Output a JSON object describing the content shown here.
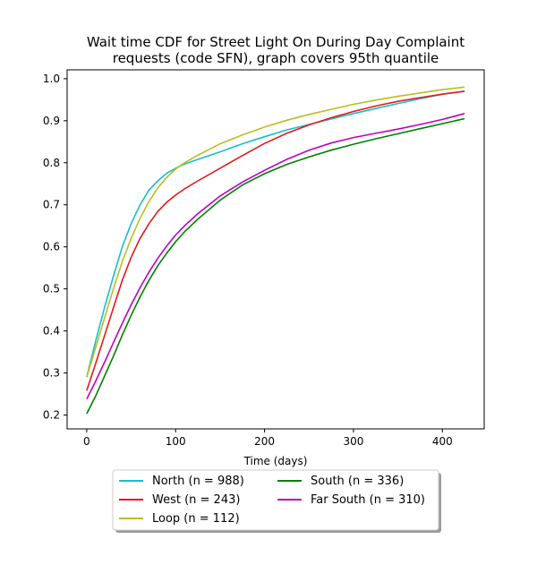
{
  "chart_data": {
    "type": "line",
    "title": "Wait time CDF for Street Light On During Day Complaint requests (code SFN), graph covers 95th quantile",
    "title_lines": [
      "Wait time CDF for Street Light On During Day Complaint",
      "requests (code SFN), graph covers 95th quantile"
    ],
    "xlabel": "Time (days)",
    "ylabel": "",
    "xlim": [
      -22,
      447
    ],
    "ylim": [
      0.167,
      1.021
    ],
    "xticks": [
      0,
      100,
      200,
      300,
      400
    ],
    "xtick_labels": [
      "0",
      "100",
      "200",
      "300",
      "400"
    ],
    "yticks": [
      0.2,
      0.3,
      0.4,
      0.5,
      0.6,
      0.7,
      0.8,
      0.9,
      1.0
    ],
    "ytick_labels": [
      "0.2",
      "0.3",
      "0.4",
      "0.5",
      "0.6",
      "0.7",
      "0.8",
      "0.9",
      "1.0"
    ],
    "grid": false,
    "legend_position": "bottom-center, below plot, two columns",
    "series": [
      {
        "name": "North (n = 988)",
        "color": "#17becf",
        "x": [
          0,
          10,
          20,
          30,
          40,
          50,
          60,
          70,
          80,
          90,
          100,
          110,
          125,
          150,
          175,
          200,
          225,
          250,
          275,
          300,
          325,
          350,
          375,
          400,
          425
        ],
        "y": [
          0.29,
          0.375,
          0.455,
          0.53,
          0.6,
          0.655,
          0.7,
          0.735,
          0.757,
          0.775,
          0.787,
          0.797,
          0.808,
          0.826,
          0.845,
          0.862,
          0.878,
          0.891,
          0.904,
          0.917,
          0.929,
          0.941,
          0.952,
          0.963,
          0.97
        ]
      },
      {
        "name": "West (n = 243)",
        "color": "#e31a1c",
        "x": [
          0,
          10,
          20,
          30,
          40,
          50,
          60,
          70,
          80,
          90,
          100,
          110,
          125,
          150,
          175,
          200,
          225,
          250,
          275,
          300,
          325,
          350,
          375,
          400,
          425
        ],
        "y": [
          0.258,
          0.322,
          0.388,
          0.455,
          0.52,
          0.575,
          0.62,
          0.655,
          0.684,
          0.706,
          0.723,
          0.738,
          0.757,
          0.787,
          0.817,
          0.846,
          0.87,
          0.89,
          0.907,
          0.922,
          0.935,
          0.946,
          0.955,
          0.963,
          0.97
        ]
      },
      {
        "name": "Loop (n = 112)",
        "color": "#bcbd22",
        "x": [
          0,
          10,
          20,
          30,
          40,
          50,
          60,
          70,
          80,
          90,
          100,
          110,
          125,
          150,
          175,
          200,
          225,
          250,
          275,
          300,
          325,
          350,
          375,
          400,
          425
        ],
        "y": [
          0.29,
          0.36,
          0.43,
          0.5,
          0.565,
          0.62,
          0.668,
          0.708,
          0.74,
          0.765,
          0.785,
          0.8,
          0.818,
          0.845,
          0.866,
          0.885,
          0.901,
          0.915,
          0.927,
          0.939,
          0.949,
          0.958,
          0.966,
          0.974,
          0.98
        ]
      },
      {
        "name": "South (n = 336)",
        "color": "#008000",
        "x": [
          0,
          10,
          20,
          30,
          40,
          50,
          60,
          70,
          80,
          90,
          100,
          110,
          125,
          150,
          175,
          200,
          225,
          250,
          275,
          300,
          325,
          350,
          375,
          400,
          425
        ],
        "y": [
          0.203,
          0.245,
          0.292,
          0.34,
          0.39,
          0.437,
          0.481,
          0.52,
          0.555,
          0.585,
          0.612,
          0.636,
          0.666,
          0.711,
          0.747,
          0.774,
          0.796,
          0.814,
          0.83,
          0.844,
          0.857,
          0.869,
          0.881,
          0.893,
          0.905
        ]
      },
      {
        "name": "Far South (n = 310)",
        "color": "#c000c0",
        "x": [
          0,
          10,
          20,
          30,
          40,
          50,
          60,
          70,
          80,
          90,
          100,
          110,
          125,
          150,
          175,
          200,
          225,
          250,
          275,
          300,
          325,
          350,
          375,
          400,
          425
        ],
        "y": [
          0.238,
          0.28,
          0.325,
          0.372,
          0.418,
          0.462,
          0.503,
          0.54,
          0.573,
          0.602,
          0.628,
          0.65,
          0.679,
          0.721,
          0.754,
          0.782,
          0.808,
          0.83,
          0.847,
          0.86,
          0.87,
          0.88,
          0.891,
          0.903,
          0.917
        ]
      }
    ]
  }
}
